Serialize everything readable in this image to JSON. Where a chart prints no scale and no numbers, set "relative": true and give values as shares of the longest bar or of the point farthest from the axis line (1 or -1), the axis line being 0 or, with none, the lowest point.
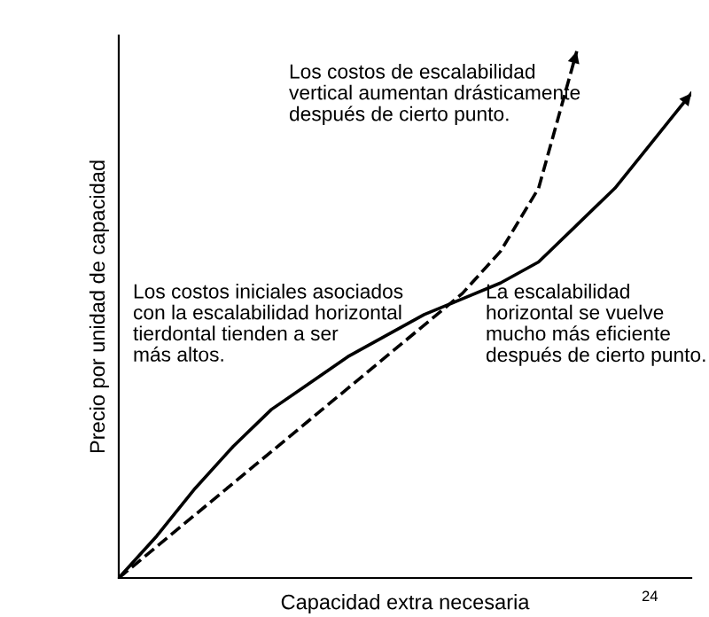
{
  "chart_data": {
    "type": "line",
    "relative": true,
    "xlabel": "Capacidad extra necesaria",
    "ylabel": "Precio por unidad de capacidad",
    "categories": [
      null,
      null,
      null,
      null,
      null,
      null,
      null,
      null,
      null,
      null,
      null,
      null,
      null,
      null,
      null,
      null
    ],
    "series": [
      {
        "color": "#000000",
        "line_style": "solid",
        "values": [
          0,
          0.08,
          0.17,
          0.25,
          0.32,
          0.37,
          0.42,
          0.46,
          0.5,
          0.53,
          0.56,
          0.6,
          0.67,
          0.74,
          0.83,
          0.92
        ]
      },
      {
        "color": "#000000",
        "line_style": "dashed",
        "values": [
          0,
          0.06,
          0.12,
          0.18,
          0.24,
          0.3,
          0.36,
          0.42,
          0.48,
          0.54,
          0.62,
          0.74,
          1.0,
          null,
          null,
          null
        ]
      }
    ],
    "annotations": [
      "Los costos de escalabilidad\nvertical aumentan drásticamente\ndespués de cierto punto.",
      "Los costos iniciales asociados\ncon la escalabilidad horizontal\ntierdontal tienden a ser\nmás altos.",
      "La escalabilidad\nhorizontal se vuelve\nmucho más eficiente\ndespués de cierto punto.",
      "24"
    ],
    "legend": false,
    "marker": "none"
  }
}
